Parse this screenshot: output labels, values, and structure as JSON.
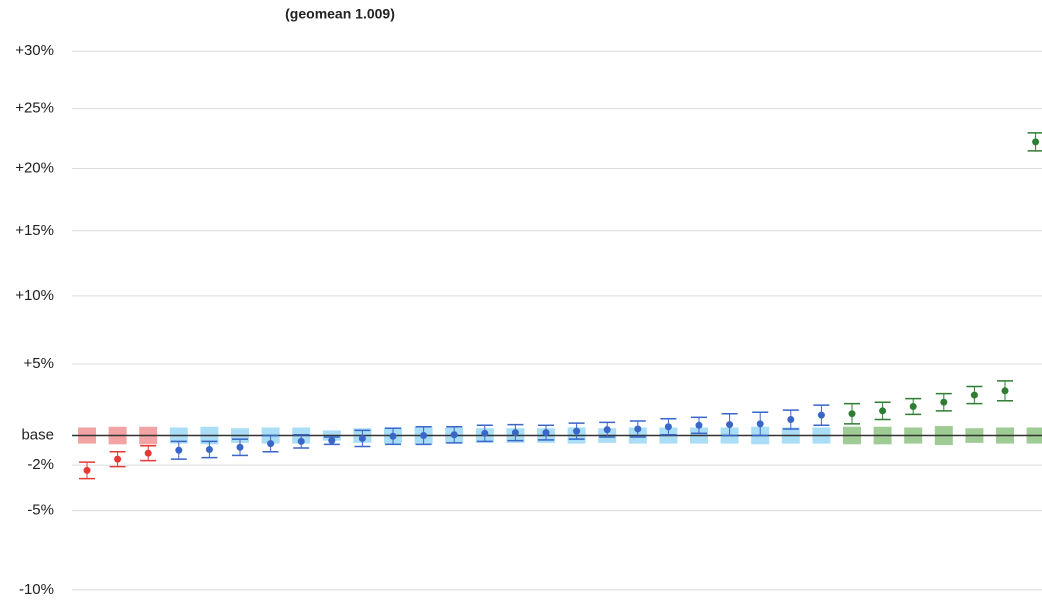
{
  "chart_data": {
    "type": "errorbar",
    "title": "(geomean 1.009)",
    "log_ratio_scale": true,
    "grid": true,
    "ylim": [
      -10.5,
      31
    ],
    "yticks": [
      {
        "value": 30,
        "label": "+30%"
      },
      {
        "value": 25,
        "label": "+25%"
      },
      {
        "value": 20,
        "label": "+20%"
      },
      {
        "value": 15,
        "label": "+15%"
      },
      {
        "value": 10,
        "label": "+10%"
      },
      {
        "value": 5,
        "label": "+5%"
      },
      {
        "value": 0,
        "label": "base"
      },
      {
        "value": -2,
        "label": "-2%"
      },
      {
        "value": -5,
        "label": "-5%"
      },
      {
        "value": -10,
        "label": "-10%"
      }
    ],
    "series": [
      {
        "color": "#e53935",
        "band_color": "#f2a3a3",
        "values": [
          -2.35,
          -1.6,
          -1.2
        ],
        "errors": [
          0.55,
          0.5,
          0.5
        ],
        "base_errors": [
          0.55,
          0.6,
          0.6
        ]
      },
      {
        "color": "#3a66c8",
        "band_color": "#a9def6",
        "values": [
          -1.0,
          -0.95,
          -0.8,
          -0.55,
          -0.4,
          -0.35,
          -0.2,
          -0.05,
          0,
          0.05,
          0.15,
          0.2,
          0.2,
          0.3,
          0.4,
          0.45,
          0.6,
          0.7,
          0.75,
          0.8,
          1.1,
          1.4
        ],
        "errors": [
          0.6,
          0.55,
          0.55,
          0.55,
          0.45,
          0.25,
          0.55,
          0.55,
          0.6,
          0.55,
          0.55,
          0.55,
          0.5,
          0.55,
          0.5,
          0.55,
          0.55,
          0.55,
          0.75,
          0.8,
          0.65,
          0.7
        ],
        "base_errors": [
          0.55,
          0.6,
          0.5,
          0.55,
          0.55,
          0.35,
          0.5,
          0.55,
          0.6,
          0.55,
          0.5,
          0.5,
          0.5,
          0.55,
          0.5,
          0.55,
          0.55,
          0.55,
          0.55,
          0.6,
          0.55,
          0.55
        ]
      },
      {
        "color": "#2e7d32",
        "band_color": "#9fcb95",
        "values": [
          1.5,
          1.7,
          2.0,
          2.3,
          2.8,
          3.1,
          22.2
        ],
        "errors": [
          0.7,
          0.6,
          0.55,
          0.6,
          0.6,
          0.7,
          0.75
        ],
        "base_errors": [
          0.6,
          0.6,
          0.55,
          0.65,
          0.5,
          0.55,
          0.55
        ]
      }
    ]
  }
}
